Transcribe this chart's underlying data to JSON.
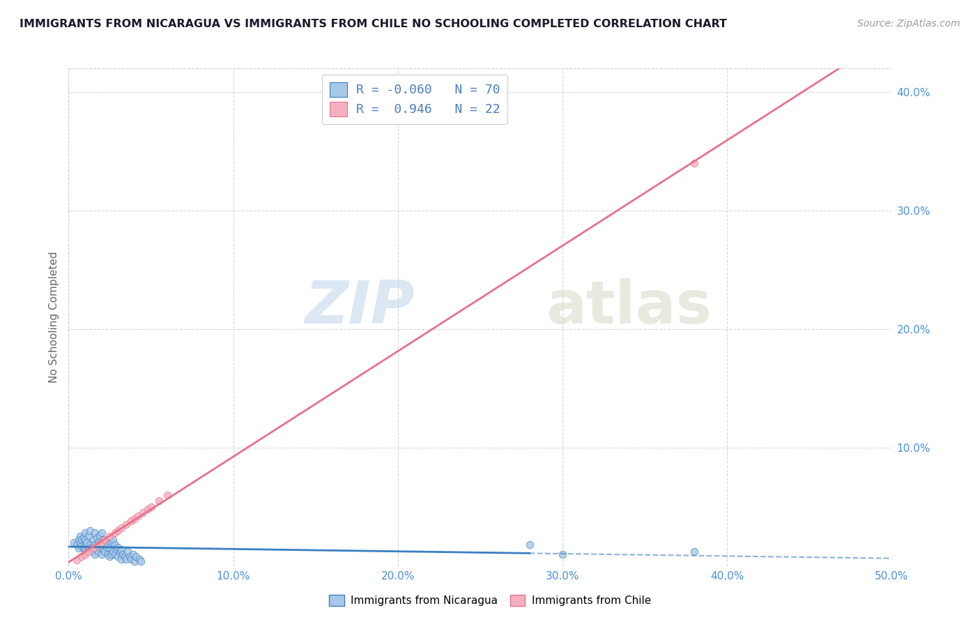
{
  "title": "IMMIGRANTS FROM NICARAGUA VS IMMIGRANTS FROM CHILE NO SCHOOLING COMPLETED CORRELATION CHART",
  "source": "Source: ZipAtlas.com",
  "ylabel": "No Schooling Completed",
  "xlim": [
    0.0,
    0.5
  ],
  "ylim": [
    0.0,
    0.42
  ],
  "xticks": [
    0.0,
    0.1,
    0.2,
    0.3,
    0.4,
    0.5
  ],
  "yticks": [
    0.0,
    0.1,
    0.2,
    0.3,
    0.4
  ],
  "xtick_labels": [
    "0.0%",
    "10.0%",
    "20.0%",
    "30.0%",
    "40.0%",
    "50.0%"
  ],
  "ytick_labels": [
    "",
    "10.0%",
    "20.0%",
    "30.0%",
    "40.0%"
  ],
  "r_nicaragua": -0.06,
  "n_nicaragua": 70,
  "r_chile": 0.946,
  "n_chile": 22,
  "color_nicaragua": "#a8c8e8",
  "color_chile": "#f4b0c0",
  "line_color_nicaragua": "#3a7fc1",
  "line_color_chile": "#e8708a",
  "background_color": "#ffffff",
  "grid_color": "#cccccc",
  "watermark_zip": "ZIP",
  "watermark_atlas": "atlas",
  "legend_label_nicaragua": "Immigrants from Nicaragua",
  "legend_label_chile": "Immigrants from Chile",
  "nicaragua_x": [
    0.003,
    0.005,
    0.006,
    0.006,
    0.007,
    0.007,
    0.008,
    0.008,
    0.009,
    0.009,
    0.01,
    0.01,
    0.01,
    0.01,
    0.01,
    0.011,
    0.012,
    0.012,
    0.013,
    0.013,
    0.014,
    0.015,
    0.015,
    0.016,
    0.016,
    0.016,
    0.017,
    0.017,
    0.018,
    0.018,
    0.019,
    0.019,
    0.02,
    0.02,
    0.02,
    0.021,
    0.021,
    0.022,
    0.022,
    0.023,
    0.024,
    0.024,
    0.025,
    0.025,
    0.026,
    0.026,
    0.027,
    0.027,
    0.028,
    0.028,
    0.029,
    0.03,
    0.03,
    0.031,
    0.032,
    0.032,
    0.033,
    0.034,
    0.035,
    0.036,
    0.037,
    0.038,
    0.039,
    0.04,
    0.041,
    0.043,
    0.044,
    0.28,
    0.38,
    0.3
  ],
  "nicaragua_y": [
    0.02,
    0.018,
    0.022,
    0.015,
    0.019,
    0.025,
    0.017,
    0.023,
    0.016,
    0.024,
    0.012,
    0.018,
    0.022,
    0.028,
    0.015,
    0.02,
    0.014,
    0.026,
    0.018,
    0.03,
    0.016,
    0.012,
    0.022,
    0.01,
    0.018,
    0.028,
    0.014,
    0.024,
    0.012,
    0.02,
    0.016,
    0.026,
    0.01,
    0.018,
    0.028,
    0.014,
    0.022,
    0.012,
    0.02,
    0.016,
    0.01,
    0.018,
    0.008,
    0.016,
    0.01,
    0.02,
    0.012,
    0.022,
    0.01,
    0.018,
    0.014,
    0.008,
    0.016,
    0.012,
    0.006,
    0.014,
    0.01,
    0.008,
    0.006,
    0.012,
    0.008,
    0.006,
    0.01,
    0.004,
    0.008,
    0.006,
    0.004,
    0.018,
    0.012,
    0.01
  ],
  "chile_x": [
    0.005,
    0.008,
    0.01,
    0.012,
    0.015,
    0.018,
    0.02,
    0.022,
    0.025,
    0.028,
    0.03,
    0.032,
    0.035,
    0.038,
    0.04,
    0.042,
    0.045,
    0.048,
    0.05,
    0.055,
    0.06,
    0.38
  ],
  "chile_y": [
    0.005,
    0.008,
    0.01,
    0.012,
    0.015,
    0.018,
    0.02,
    0.022,
    0.025,
    0.028,
    0.03,
    0.032,
    0.035,
    0.038,
    0.04,
    0.042,
    0.045,
    0.048,
    0.05,
    0.055,
    0.06,
    0.34
  ],
  "nic_line_solid_end": 0.28,
  "chile_line_solid_end": 0.5,
  "legend_r_color": "#4a7fc1"
}
